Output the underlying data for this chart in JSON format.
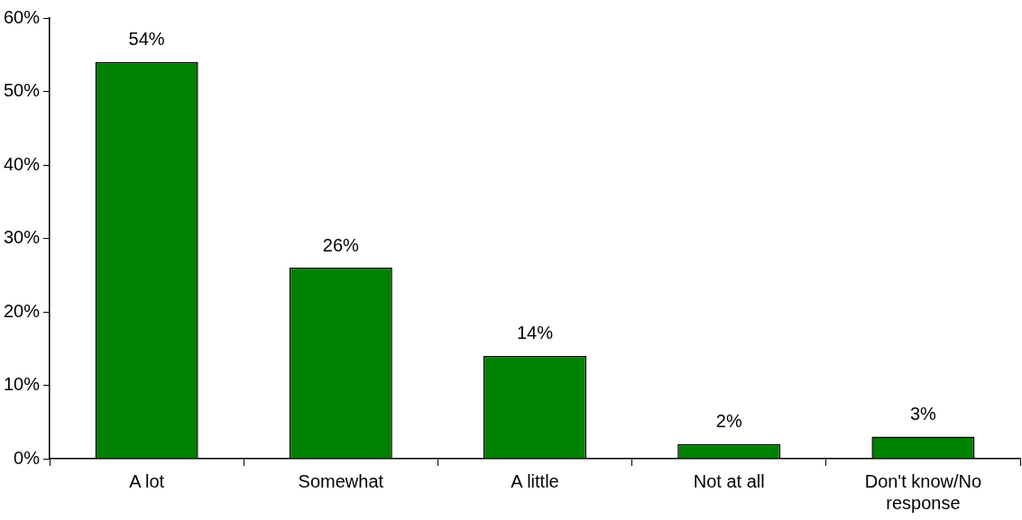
{
  "chart_data": {
    "type": "bar",
    "categories": [
      "A lot",
      "Somewhat",
      "A little",
      "Not at all",
      "Don't know/No response"
    ],
    "values": [
      54,
      26,
      14,
      2,
      3
    ],
    "value_labels": [
      "54%",
      "26%",
      "14%",
      "2%",
      "3%"
    ],
    "color": "#008000",
    "ylim": [
      0,
      60
    ],
    "yticks": [
      {
        "value": 0,
        "label": "0%"
      },
      {
        "value": 10,
        "label": "10%"
      },
      {
        "value": 20,
        "label": "20%"
      },
      {
        "value": 30,
        "label": "30%"
      },
      {
        "value": 40,
        "label": "40%"
      },
      {
        "value": 50,
        "label": "50%"
      },
      {
        "value": 60,
        "label": "60%"
      }
    ],
    "grid": false,
    "legend": false
  }
}
